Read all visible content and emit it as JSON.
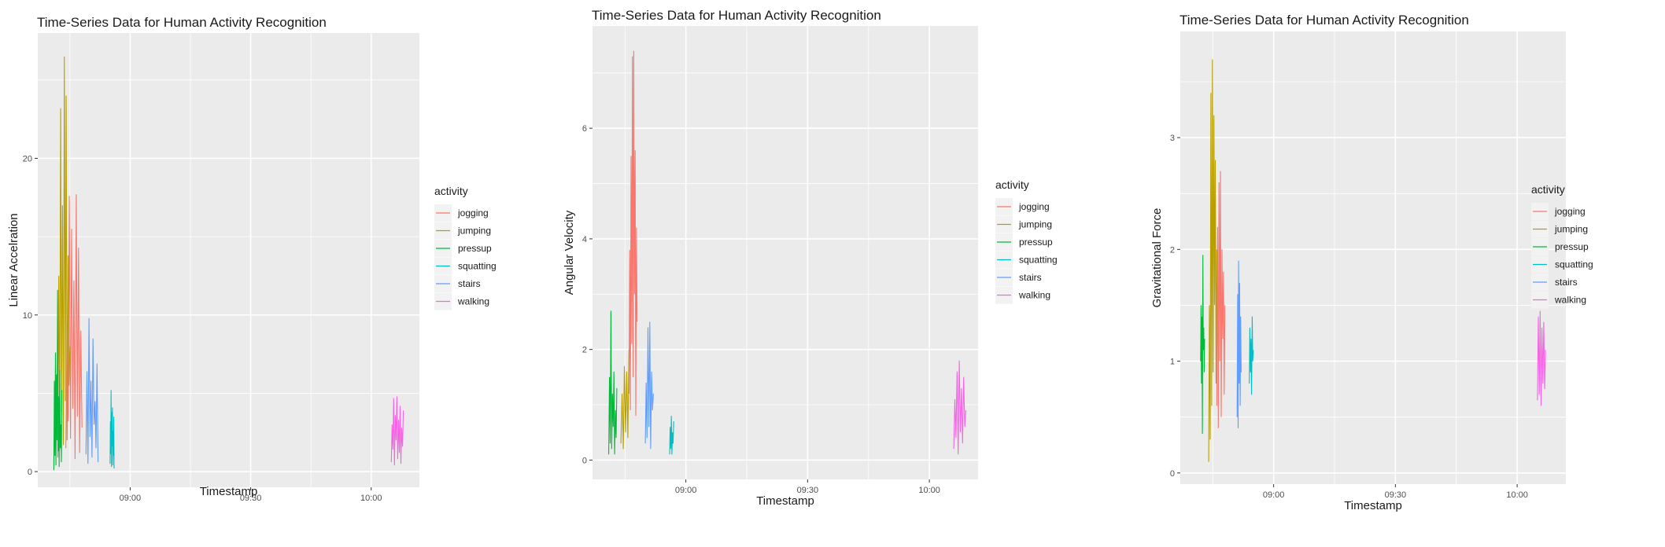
{
  "chart_data": [
    {
      "type": "line",
      "title": "Time-Series Data for Human Activity Recognition",
      "xlabel": "Timestamp",
      "ylabel": "Linear Accelration",
      "x_ticks": [
        "09:00",
        "09:30",
        "10:00"
      ],
      "x_range": [
        "08:37",
        "10:12"
      ],
      "y_ticks": [
        0,
        10,
        20
      ],
      "ylim": [
        -1,
        28
      ],
      "legend_title": "activity",
      "legend_position": "right",
      "grid": true,
      "series": [
        {
          "name": "jogging",
          "color": "#F8766D",
          "x_start": "08:44",
          "x_end": "08:48",
          "values": [
            1.5,
            9.5,
            3.2,
            17.6,
            2.1,
            15.5,
            4.0,
            12.2,
            0.8,
            17.7,
            3.5,
            14.3,
            1.2,
            9.0,
            2.8
          ]
        },
        {
          "name": "jumping",
          "color": "#B79F00",
          "x_start": "08:42",
          "x_end": "08:45",
          "values": [
            0.9,
            12.5,
            2.6,
            23.2,
            3.8,
            17.0,
            1.7,
            26.5,
            4.5,
            24.0,
            2.0,
            13.8,
            5.5,
            8.0
          ]
        },
        {
          "name": "pressup",
          "color": "#00BA38",
          "x_start": "08:41",
          "x_end": "08:43",
          "values": [
            0.1,
            5.8,
            1.0,
            7.6,
            0.4,
            6.2,
            2.0,
            11.6,
            1.3,
            4.8,
            0.3,
            6.5,
            1.5,
            3.0,
            0.6,
            5.2
          ]
        },
        {
          "name": "squatting",
          "color": "#00BFC4",
          "x_start": "08:55",
          "x_end": "08:56",
          "values": [
            0.5,
            3.2,
            1.1,
            5.2,
            0.3,
            3.8,
            1.6,
            4.1,
            0.4,
            2.6,
            1.0,
            3.5,
            0.2
          ]
        },
        {
          "name": "stairs",
          "color": "#619CFF",
          "x_start": "08:49",
          "x_end": "08:52",
          "values": [
            1.1,
            6.4,
            0.5,
            9.8,
            2.2,
            5.8,
            0.9,
            8.5,
            3.0,
            4.5,
            1.5,
            6.9,
            0.6
          ]
        },
        {
          "name": "walking",
          "color": "#F564E3",
          "x_start": "10:05",
          "x_end": "10:08",
          "values": [
            0.6,
            3.0,
            1.4,
            4.7,
            0.4,
            3.6,
            2.0,
            4.8,
            0.8,
            3.3,
            1.2,
            4.2,
            0.5,
            2.8,
            1.6,
            3.9
          ]
        }
      ]
    },
    {
      "type": "line",
      "title": "Time-Series Data for Human Activity Recognition",
      "xlabel": "Timestamp",
      "ylabel": "Angular Velocity",
      "x_ticks": [
        "09:00",
        "09:30",
        "10:00"
      ],
      "x_range": [
        "08:37",
        "10:12"
      ],
      "y_ticks": [
        0,
        2,
        4,
        6
      ],
      "ylim": [
        -0.35,
        7.85
      ],
      "legend_title": "activity",
      "legend_position": "right",
      "grid": true,
      "series": [
        {
          "name": "jogging",
          "color": "#F8766D",
          "x_start": "08:46",
          "x_end": "08:48",
          "values": [
            1.2,
            3.8,
            0.9,
            5.5,
            2.1,
            7.3,
            1.5,
            7.4,
            3.0,
            5.6,
            0.8,
            4.2,
            2.5
          ]
        },
        {
          "name": "jumping",
          "color": "#B79F00",
          "x_start": "08:44",
          "x_end": "08:46",
          "values": [
            0.3,
            1.2,
            0.2,
            1.7,
            0.5,
            1.6,
            0.4,
            2.0
          ]
        },
        {
          "name": "pressup",
          "color": "#00BA38",
          "x_start": "08:41",
          "x_end": "08:43",
          "values": [
            0.1,
            1.5,
            0.3,
            2.7,
            0.2,
            1.2,
            0.6,
            1.6,
            0.1,
            0.9,
            0.4,
            1.3
          ]
        },
        {
          "name": "squatting",
          "color": "#00BFC4",
          "x_start": "08:56",
          "x_end": "08:57",
          "values": [
            0.1,
            0.6,
            0.2,
            0.8,
            0.1,
            0.5,
            0.3,
            0.7
          ]
        },
        {
          "name": "stairs",
          "color": "#619CFF",
          "x_start": "08:50",
          "x_end": "08:52",
          "values": [
            0.3,
            1.4,
            0.4,
            2.4,
            0.6,
            2.5,
            0.2,
            1.6,
            0.9,
            1.2
          ]
        },
        {
          "name": "walking",
          "color": "#F564E3",
          "x_start": "10:06",
          "x_end": "10:09",
          "values": [
            0.2,
            1.1,
            0.4,
            1.6,
            0.1,
            1.8,
            0.5,
            1.3,
            0.3,
            1.5,
            0.6,
            0.9
          ]
        }
      ]
    },
    {
      "type": "line",
      "title": "Time-Series Data for Human Activity Recognition",
      "xlabel": "Timestamp",
      "ylabel": "Gravitational Force",
      "x_ticks": [
        "09:00",
        "09:30",
        "10:00"
      ],
      "x_range": [
        "08:37",
        "10:12"
      ],
      "y_ticks": [
        0,
        1,
        2,
        3
      ],
      "ylim": [
        -0.1,
        3.95
      ],
      "legend_title": "activity",
      "legend_position": "right",
      "grid": true,
      "series": [
        {
          "name": "jogging",
          "color": "#F8766D",
          "x_start": "08:46",
          "x_end": "08:48",
          "values": [
            0.6,
            2.2,
            0.4,
            2.6,
            1.0,
            2.7,
            0.5,
            2.0,
            1.2,
            1.8,
            0.7,
            1.5
          ]
        },
        {
          "name": "jumping",
          "color": "#B79F00",
          "x_start": "08:44",
          "x_end": "08:46",
          "values": [
            0.1,
            1.5,
            0.3,
            3.4,
            0.6,
            3.7,
            0.9,
            3.2,
            1.5,
            2.8,
            0.8,
            2.0
          ]
        },
        {
          "name": "pressup",
          "color": "#00BA38",
          "x_start": "08:42",
          "x_end": "08:43",
          "values": [
            1.0,
            1.5,
            0.8,
            1.4,
            0.35,
            1.95,
            1.1,
            1.3,
            0.9,
            1.2
          ]
        },
        {
          "name": "squatting",
          "color": "#00BFC4",
          "x_start": "08:54",
          "x_end": "08:55",
          "values": [
            0.8,
            1.3,
            0.9,
            1.2,
            0.7,
            1.4,
            1.0,
            1.1
          ]
        },
        {
          "name": "stairs",
          "color": "#619CFF",
          "x_start": "08:51",
          "x_end": "08:52",
          "values": [
            0.5,
            1.6,
            0.4,
            1.9,
            0.8,
            1.7,
            0.6,
            1.4,
            0.9
          ]
        },
        {
          "name": "walking",
          "color": "#F564E3",
          "x_start": "10:05",
          "x_end": "10:07",
          "values": [
            0.65,
            1.4,
            0.7,
            1.45,
            0.6,
            1.3,
            0.8,
            1.35,
            0.75,
            1.1
          ]
        }
      ]
    }
  ]
}
